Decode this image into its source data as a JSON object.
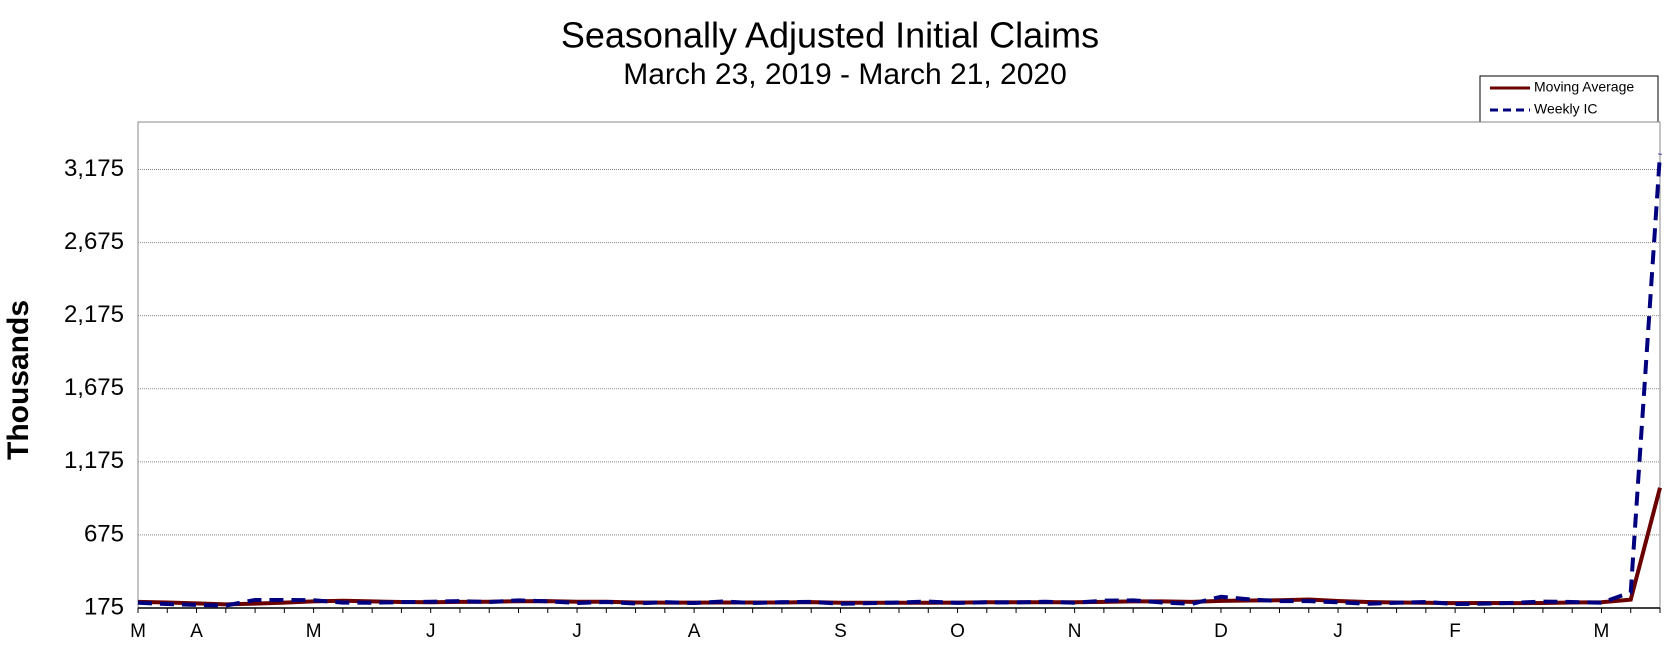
{
  "chart_data": {
    "type": "line",
    "title": "Seasonally Adjusted Initial Claims",
    "subtitle": "March 23, 2019 - March 21, 2020",
    "y_label": "Thousands",
    "categories": [
      "M",
      null,
      "A",
      null,
      null,
      null,
      "M",
      null,
      null,
      null,
      "J",
      null,
      null,
      null,
      null,
      "J",
      null,
      null,
      null,
      "A",
      null,
      null,
      null,
      null,
      "S",
      null,
      null,
      null,
      "O",
      null,
      null,
      null,
      "N",
      null,
      null,
      null,
      null,
      "D",
      null,
      null,
      null,
      "J",
      null,
      null,
      null,
      "F",
      null,
      null,
      null,
      null,
      "M",
      null,
      null
    ],
    "series": [
      {
        "name": "Moving Average",
        "color": "#6b0000",
        "line_style": "solid",
        "values": [
          217,
          213,
          207,
          200,
          205,
          212,
          220,
          225,
          220,
          216,
          214,
          217,
          218,
          221,
          222,
          218,
          218,
          213,
          212,
          212,
          213,
          213,
          213,
          215,
          211,
          211,
          211,
          211,
          212,
          214,
          214,
          214,
          214,
          217,
          220,
          220,
          217,
          224,
          226,
          228,
          233,
          223,
          216,
          213,
          211,
          208,
          209,
          208,
          209,
          213,
          214,
          232,
          998
        ]
      },
      {
        "name": "Weekly IC",
        "color": "#00007f",
        "line_style": "dashed",
        "values": [
          211,
          202,
          196,
          192,
          230,
          230,
          228,
          212,
          211,
          215,
          218,
          222,
          216,
          227,
          221,
          209,
          216,
          206,
          215,
          209,
          220,
          209,
          215,
          217,
          204,
          208,
          213,
          219,
          210,
          214,
          213,
          218,
          211,
          225,
          227,
          213,
          203,
          252,
          234,
          222,
          222,
          214,
          204,
          211,
          216,
          202,
          205,
          210,
          219,
          216,
          211,
          282,
          3283
        ]
      }
    ],
    "ylim": [
      175,
      3500
    ],
    "yticks": [
      175,
      675,
      {
        "value": 1175,
        "label": "1,175"
      },
      {
        "value": 1675,
        "label": "1,675"
      },
      {
        "value": 2175,
        "label": "2,175"
      },
      {
        "value": 2675,
        "label": "2,675"
      },
      {
        "value": 3175,
        "label": "3,175"
      }
    ],
    "grid": true,
    "legend": "top-right"
  }
}
